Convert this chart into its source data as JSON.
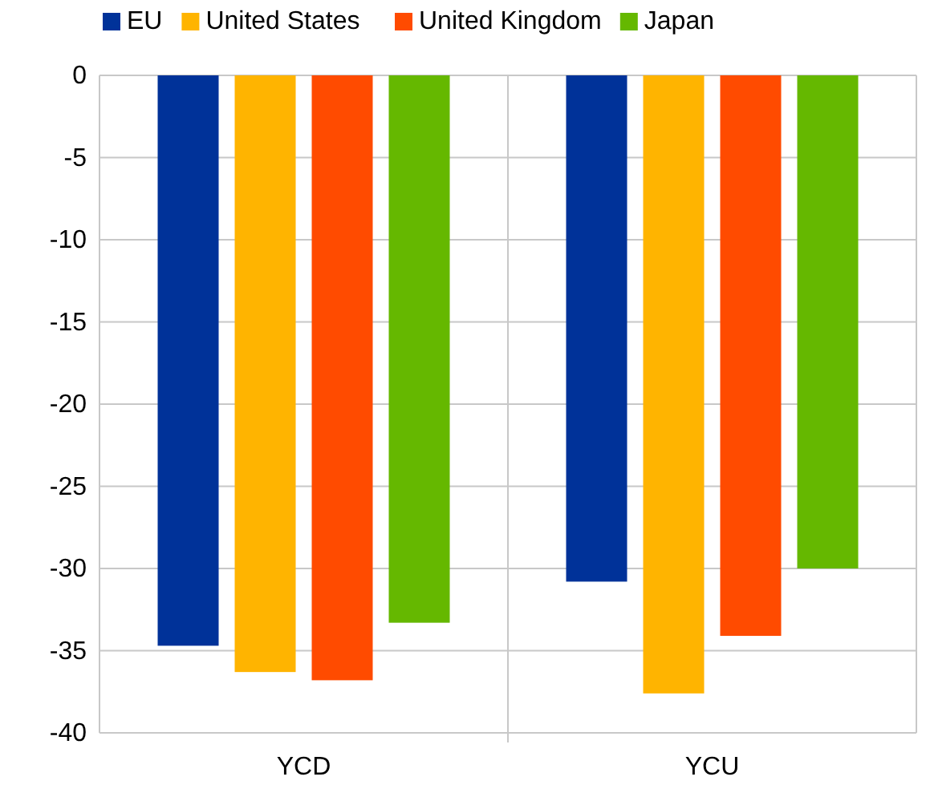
{
  "chart_data": {
    "type": "bar",
    "categories": [
      "YCD",
      "YCU"
    ],
    "series": [
      {
        "name": "EU",
        "color": "#003299",
        "values": [
          -34.7,
          -30.8
        ]
      },
      {
        "name": "United States",
        "color": "#ffb400",
        "values": [
          -36.3,
          -37.6
        ]
      },
      {
        "name": "United Kingdom",
        "color": "#ff4b00",
        "values": [
          -36.8,
          -34.1
        ]
      },
      {
        "name": "Japan",
        "color": "#65b800",
        "values": [
          -33.3,
          -30.0
        ]
      }
    ],
    "ylim": [
      -40,
      0
    ],
    "yticks": [
      0,
      -5,
      -10,
      -15,
      -20,
      -25,
      -30,
      -35,
      -40
    ],
    "grid": "y",
    "legend": "top"
  }
}
